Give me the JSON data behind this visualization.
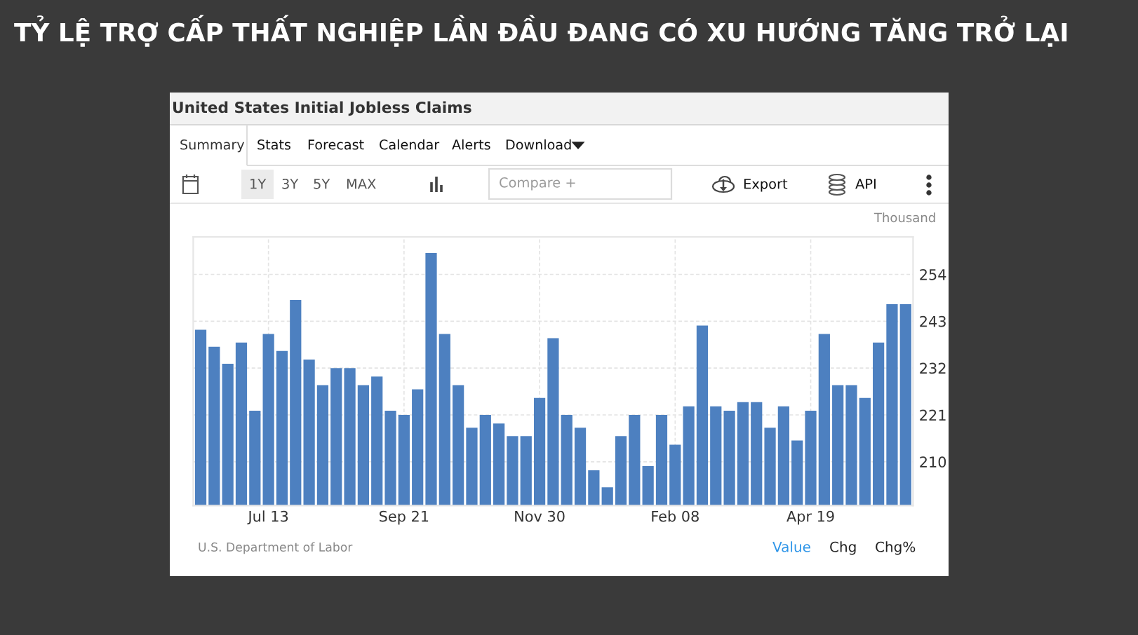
{
  "chart_data": {
    "type": "bar",
    "title": "TỶ LỆ TRỢ CẤP THẤT NGHIỆP LẦN ĐẦU ĐANG CÓ XU HƯỚNG TĂNG TRỞ LẠI",
    "subtitle": "United States Initial Jobless Claims",
    "ylabel": "Thousand",
    "categories": [
      null,
      null,
      null,
      null,
      null,
      "Jul 13",
      null,
      null,
      null,
      null,
      null,
      null,
      null,
      null,
      null,
      "Sep 21",
      null,
      null,
      null,
      null,
      null,
      null,
      null,
      null,
      null,
      "Nov 30",
      null,
      null,
      null,
      null,
      null,
      null,
      null,
      null,
      null,
      "Feb 08",
      null,
      null,
      null,
      null,
      null,
      null,
      null,
      null,
      null,
      "Apr 19",
      null,
      null,
      null,
      null,
      null,
      null,
      null
    ],
    "values": [
      241,
      237,
      233,
      238,
      222,
      240,
      236,
      248,
      234,
      228,
      232,
      232,
      228,
      230,
      222,
      221,
      227,
      259,
      240,
      228,
      218,
      221,
      219,
      216,
      216,
      225,
      239,
      221,
      218,
      208,
      204,
      216,
      221,
      209,
      221,
      214,
      223,
      242,
      223,
      222,
      224,
      224,
      218,
      223,
      215,
      222,
      240,
      228,
      228,
      225,
      238,
      247,
      247
    ],
    "color": "#4d80c0",
    "ylim": [
      199.7,
      262.8
    ],
    "yticks": [
      210,
      221,
      232,
      243,
      254
    ],
    "grid": true,
    "annotations": [
      "U.S. Department of Labor",
      "Summary",
      "Stats",
      "Forecast",
      "Calendar",
      "Alerts",
      "Download",
      "1Y",
      "3Y",
      "5Y",
      "MAX",
      "Compare +",
      "Export",
      "API",
      "Value",
      "Chg",
      "Chg%"
    ]
  }
}
